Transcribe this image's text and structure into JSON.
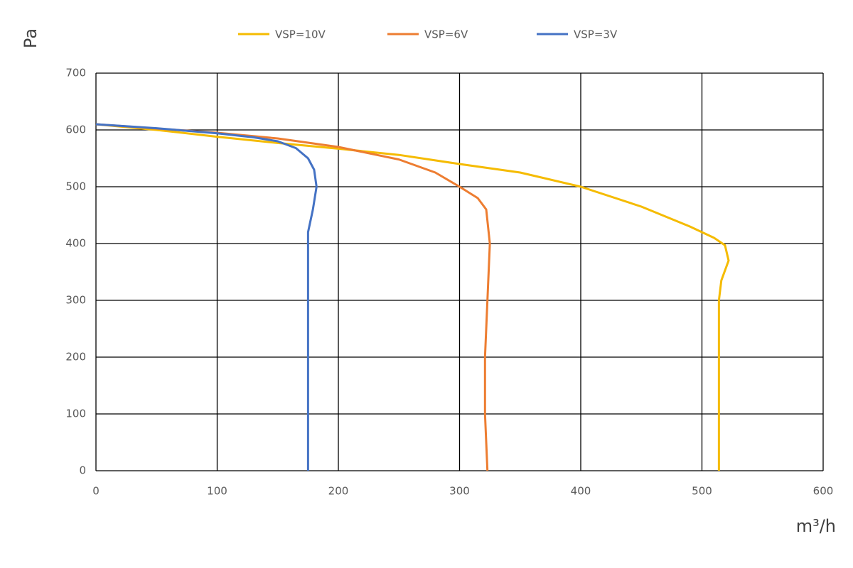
{
  "chart_data": {
    "type": "line",
    "ylabel": "Pa",
    "xlabel": "m³/h",
    "xlim": [
      0,
      600
    ],
    "xticks": [
      0,
      100,
      200,
      300,
      400,
      500,
      600
    ],
    "ylim": [
      0,
      700
    ],
    "yticks": [
      0,
      100,
      200,
      300,
      400,
      500,
      600,
      700
    ],
    "grid": true,
    "legend": "top",
    "series": [
      {
        "name": "VSP=10V",
        "color": "#f5bb00",
        "x": [
          0,
          50,
          100,
          150,
          200,
          250,
          300,
          350,
          400,
          450,
          490,
          510,
          519,
          522,
          516,
          514,
          514,
          514,
          514
        ],
        "values": [
          610,
          600,
          588,
          577,
          567,
          556,
          540,
          525,
          500,
          465,
          430,
          410,
          397,
          370,
          335,
          300,
          200,
          100,
          0
        ]
      },
      {
        "name": "VSP=6V",
        "color": "#ed7d31",
        "x": [
          0,
          100,
          150,
          200,
          250,
          280,
          300,
          315,
          322,
          325,
          323,
          321,
          321,
          323
        ],
        "values": [
          610,
          595,
          585,
          570,
          548,
          525,
          500,
          480,
          460,
          400,
          300,
          200,
          100,
          0
        ]
      },
      {
        "name": "VSP=3V",
        "color": "#4472c4",
        "x": [
          0,
          50,
          100,
          130,
          150,
          165,
          175,
          180,
          182,
          179,
          175,
          175,
          175,
          175
        ],
        "values": [
          610,
          603,
          594,
          587,
          580,
          568,
          550,
          530,
          500,
          460,
          420,
          400,
          200,
          0
        ]
      }
    ]
  }
}
